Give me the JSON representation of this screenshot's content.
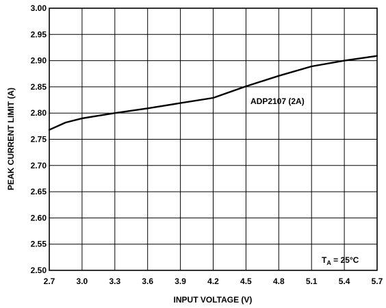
{
  "chart_data": {
    "type": "line",
    "title": "",
    "xlabel": "INPUT VOLTAGE (V)",
    "ylabel": "PEAK CURRENT LIMIT (A)",
    "xlim": [
      2.7,
      5.7
    ],
    "ylim": [
      2.5,
      3.0
    ],
    "grid": true,
    "x_ticks": [
      "2.7",
      "3.0",
      "3.3",
      "3.6",
      "3.9",
      "4.2",
      "4.5",
      "4.8",
      "5.1",
      "5.4",
      "5.7"
    ],
    "y_ticks": [
      "2.50",
      "2.55",
      "2.60",
      "2.65",
      "2.70",
      "2.75",
      "2.80",
      "2.85",
      "2.90",
      "2.95",
      "3.00"
    ],
    "series": [
      {
        "name": "ADP2107 (2A)",
        "x": [
          2.7,
          2.85,
          3.0,
          3.3,
          3.6,
          3.9,
          4.2,
          4.5,
          4.8,
          5.1,
          5.4,
          5.7
        ],
        "y": [
          2.768,
          2.782,
          2.79,
          2.8,
          2.809,
          2.819,
          2.829,
          2.851,
          2.871,
          2.889,
          2.9,
          2.909
        ]
      }
    ],
    "annotations": [
      {
        "text": "ADP2107 (2A)"
      }
    ],
    "condition_label": {
      "prefix": "T",
      "subscript": "A",
      "suffix": " = 25°C"
    }
  }
}
